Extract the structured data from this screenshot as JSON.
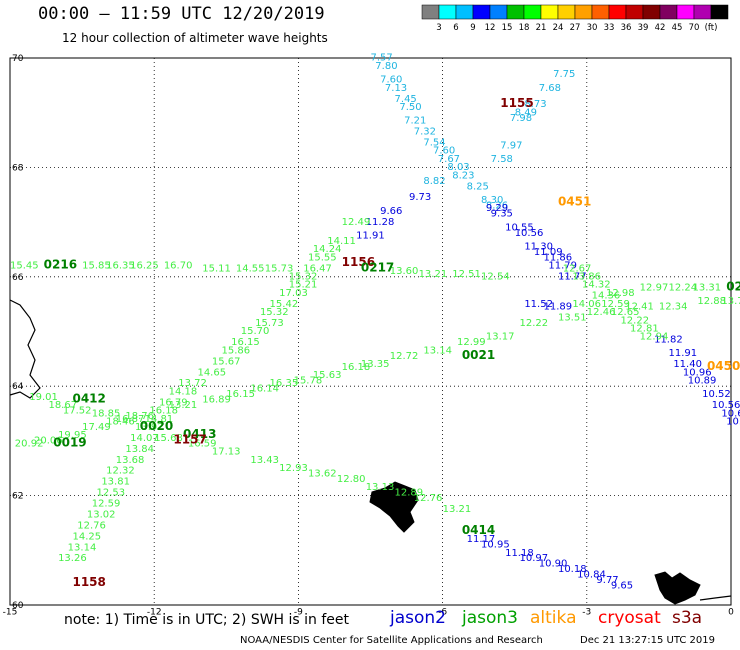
{
  "header": {
    "title": "00:00 — 11:59 UTC 12/20/2019",
    "subtitle": "12 hour collection of altimeter wave heights"
  },
  "colorbar": {
    "colors": [
      "#808080",
      "#00ffff",
      "#00bfff",
      "#0000ff",
      "#0080ff",
      "#00c000",
      "#00ff00",
      "#ffff00",
      "#ffd000",
      "#ffa000",
      "#ff6000",
      "#ff0000",
      "#c00000",
      "#800000",
      "#800060",
      "#ff00ff",
      "#b000b0",
      "#000000"
    ],
    "labels": [
      "3",
      "6",
      "9",
      "12",
      "15",
      "18",
      "21",
      "24",
      "27",
      "30",
      "33",
      "36",
      "39",
      "42",
      "45",
      "70",
      "(ft)"
    ]
  },
  "footer": {
    "note": "note: 1) Time is in UTC; 2) SWH is in feet",
    "credit": "NOAA/NESDIS Center for Satellite Applications and Research",
    "timestamp": "Dec 21 13:27:15 UTC 2019"
  },
  "legend": {
    "jason2": {
      "label": "jason2",
      "color": "#0000cc"
    },
    "jason3": {
      "label": "jason3",
      "color": "#00a000"
    },
    "altika": {
      "label": "altika",
      "color": "#ff9900"
    },
    "cryosat": {
      "label": "cryosat",
      "color": "#ff0000"
    },
    "s3a": {
      "label": "s3a",
      "color": "#800000"
    }
  },
  "chart_data": {
    "type": "scatter",
    "xlim": [
      -15,
      0
    ],
    "ylim": [
      60,
      70
    ],
    "x_ticks": [
      "-15",
      "-12",
      "-9",
      "-6",
      "-3",
      "0"
    ],
    "y_ticks": [
      "60",
      "62",
      "64",
      "66",
      "68",
      "70"
    ],
    "grid": true,
    "tracks": [
      {
        "time": "1155",
        "color": "#800000",
        "x": -4.8,
        "y": 69.1
      },
      {
        "time": "1156",
        "color": "#800000",
        "x": -8.1,
        "y": 66.2
      },
      {
        "time": "0217",
        "color": "#008000",
        "x": -7.7,
        "y": 66.1
      },
      {
        "time": "0216",
        "color": "#008000",
        "x": -14.3,
        "y": 66.15
      },
      {
        "time": "0451",
        "color": "#ff9900",
        "x": -3.6,
        "y": 67.3
      },
      {
        "time": "0021",
        "color": "#008000",
        "x": -5.6,
        "y": 64.5
      },
      {
        "time": "0450",
        "color": "#ff9900",
        "x": -0.5,
        "y": 64.3
      },
      {
        "time": "0412",
        "color": "#008000",
        "x": -13.7,
        "y": 63.7
      },
      {
        "time": "0020",
        "color": "#008000",
        "x": -12.3,
        "y": 63.2
      },
      {
        "time": "0413",
        "color": "#008000",
        "x": -11.4,
        "y": 63.05
      },
      {
        "time": "1157",
        "color": "#800000",
        "x": -11.6,
        "y": 62.95
      },
      {
        "time": "0019",
        "color": "#008000",
        "x": -14.1,
        "y": 62.9
      },
      {
        "time": "0414",
        "color": "#008000",
        "x": -5.6,
        "y": 61.3
      },
      {
        "time": "1158",
        "color": "#800000",
        "x": -13.7,
        "y": 60.35
      },
      {
        "time": "02",
        "color": "#008000",
        "x": -0.1,
        "y": 65.75
      }
    ],
    "points": [
      {
        "x": -7.5,
        "y": 69.95,
        "v": "7.57",
        "c": "#1fb4e0"
      },
      {
        "x": -7.4,
        "y": 69.8,
        "v": "7.80",
        "c": "#1fb4e0"
      },
      {
        "x": -7.3,
        "y": 69.55,
        "v": "7.60",
        "c": "#1fb4e0"
      },
      {
        "x": -7.2,
        "y": 69.4,
        "v": "7.13",
        "c": "#1fb4e0"
      },
      {
        "x": -7.0,
        "y": 69.2,
        "v": "7.45",
        "c": "#1fb4e0"
      },
      {
        "x": -6.9,
        "y": 69.05,
        "v": "7.50",
        "c": "#1fb4e0"
      },
      {
        "x": -6.8,
        "y": 68.8,
        "v": "7.21",
        "c": "#1fb4e0"
      },
      {
        "x": -6.6,
        "y": 68.6,
        "v": "7.32",
        "c": "#1fb4e0"
      },
      {
        "x": -6.4,
        "y": 68.4,
        "v": "7.54",
        "c": "#1fb4e0"
      },
      {
        "x": -6.2,
        "y": 68.25,
        "v": "7.60",
        "c": "#1fb4e0"
      },
      {
        "x": -6.1,
        "y": 68.1,
        "v": "7.67",
        "c": "#1fb4e0"
      },
      {
        "x": -5.9,
        "y": 67.95,
        "v": "8.03",
        "c": "#1fb4e0"
      },
      {
        "x": -5.8,
        "y": 67.8,
        "v": "8.23",
        "c": "#1fb4e0"
      },
      {
        "x": -6.4,
        "y": 67.7,
        "v": "8.82",
        "c": "#1fb4e0"
      },
      {
        "x": -5.5,
        "y": 67.6,
        "v": "8.25",
        "c": "#1fb4e0"
      },
      {
        "x": -5.2,
        "y": 67.35,
        "v": "8.30",
        "c": "#1fb4e0"
      },
      {
        "x": -5.1,
        "y": 67.25,
        "v": "8.26",
        "c": "#1fb4e0"
      },
      {
        "x": -5.0,
        "y": 68.1,
        "v": "7.58",
        "c": "#1fb4e0"
      },
      {
        "x": -4.8,
        "y": 68.35,
        "v": "7.97",
        "c": "#1fb4e0"
      },
      {
        "x": -4.6,
        "y": 68.85,
        "v": "7.98",
        "c": "#1fb4e0"
      },
      {
        "x": -4.5,
        "y": 68.95,
        "v": "8.49",
        "c": "#1fb4e0"
      },
      {
        "x": -4.3,
        "y": 69.1,
        "v": "8.73",
        "c": "#1fb4e0"
      },
      {
        "x": -4.0,
        "y": 69.4,
        "v": "7.68",
        "c": "#1fb4e0"
      },
      {
        "x": -3.7,
        "y": 69.65,
        "v": "7.75",
        "c": "#1fb4e0"
      },
      {
        "x": -6.7,
        "y": 67.4,
        "v": "9.73",
        "c": "#0000dd"
      },
      {
        "x": -7.3,
        "y": 67.15,
        "v": "9.66",
        "c": "#0000dd"
      },
      {
        "x": -7.6,
        "y": 66.95,
        "v": "11.28",
        "c": "#0000dd"
      },
      {
        "x": -7.8,
        "y": 66.7,
        "v": "11.91",
        "c": "#0000dd"
      },
      {
        "x": -5.1,
        "y": 67.2,
        "v": "9.29",
        "c": "#0000dd"
      },
      {
        "x": -5.0,
        "y": 67.1,
        "v": "9.35",
        "c": "#0000dd"
      },
      {
        "x": -4.7,
        "y": 66.85,
        "v": "10.55",
        "c": "#0000dd"
      },
      {
        "x": -4.5,
        "y": 66.75,
        "v": "10.56",
        "c": "#0000dd"
      },
      {
        "x": -4.3,
        "y": 66.5,
        "v": "11.30",
        "c": "#0000dd"
      },
      {
        "x": -4.1,
        "y": 66.4,
        "v": "11.09",
        "c": "#0000dd"
      },
      {
        "x": -3.9,
        "y": 66.3,
        "v": "11.86",
        "c": "#0000dd"
      },
      {
        "x": -3.8,
        "y": 66.15,
        "v": "11.79",
        "c": "#0000dd"
      },
      {
        "x": -3.6,
        "y": 65.95,
        "v": "11.77",
        "c": "#0000dd"
      },
      {
        "x": -4.3,
        "y": 65.45,
        "v": "11.52",
        "c": "#0000dd"
      },
      {
        "x": -3.9,
        "y": 65.4,
        "v": "11.89",
        "c": "#0000dd"
      },
      {
        "x": -1.6,
        "y": 64.8,
        "v": "11.82",
        "c": "#0000dd"
      },
      {
        "x": -1.3,
        "y": 64.55,
        "v": "11.91",
        "c": "#0000dd"
      },
      {
        "x": -1.2,
        "y": 64.35,
        "v": "11.40",
        "c": "#0000dd"
      },
      {
        "x": -1.0,
        "y": 64.2,
        "v": "10.96",
        "c": "#0000dd"
      },
      {
        "x": -0.9,
        "y": 64.05,
        "v": "10.89",
        "c": "#0000dd"
      },
      {
        "x": -0.6,
        "y": 63.8,
        "v": "10.52",
        "c": "#0000dd"
      },
      {
        "x": -0.4,
        "y": 63.6,
        "v": "10.56",
        "c": "#0000dd"
      },
      {
        "x": -0.2,
        "y": 63.45,
        "v": "10.6",
        "c": "#0000dd"
      },
      {
        "x": -0.1,
        "y": 63.3,
        "v": "10.",
        "c": "#0000dd"
      },
      {
        "x": -5.5,
        "y": 61.15,
        "v": "11.17",
        "c": "#0000dd"
      },
      {
        "x": -5.2,
        "y": 61.05,
        "v": "10.95",
        "c": "#0000dd"
      },
      {
        "x": -4.7,
        "y": 60.9,
        "v": "11.18",
        "c": "#0000dd"
      },
      {
        "x": -4.4,
        "y": 60.8,
        "v": "10.97",
        "c": "#0000dd"
      },
      {
        "x": -4.0,
        "y": 60.7,
        "v": "10.90",
        "c": "#0000dd"
      },
      {
        "x": -3.6,
        "y": 60.6,
        "v": "10.18",
        "c": "#0000dd"
      },
      {
        "x": -3.2,
        "y": 60.5,
        "v": "10.84",
        "c": "#0000dd"
      },
      {
        "x": -2.8,
        "y": 60.4,
        "v": "9.77",
        "c": "#0000dd"
      },
      {
        "x": -2.5,
        "y": 60.3,
        "v": "9.65",
        "c": "#0000dd"
      },
      {
        "x": -8.1,
        "y": 66.95,
        "v": "12.49",
        "c": "#44ee44"
      },
      {
        "x": -8.4,
        "y": 66.6,
        "v": "14.11",
        "c": "#44ee44"
      },
      {
        "x": -8.7,
        "y": 66.45,
        "v": "14.24",
        "c": "#44ee44"
      },
      {
        "x": -8.8,
        "y": 66.3,
        "v": "15.55",
        "c": "#44ee44"
      },
      {
        "x": -8.9,
        "y": 66.1,
        "v": "16.47",
        "c": "#44ee44"
      },
      {
        "x": -9.2,
        "y": 65.95,
        "v": "15.32",
        "c": "#44ee44"
      },
      {
        "x": -9.2,
        "y": 65.8,
        "v": "15.21",
        "c": "#44ee44"
      },
      {
        "x": -9.4,
        "y": 65.65,
        "v": "17.03",
        "c": "#44ee44"
      },
      {
        "x": -9.6,
        "y": 65.45,
        "v": "15.42",
        "c": "#44ee44"
      },
      {
        "x": -9.8,
        "y": 65.3,
        "v": "15.32",
        "c": "#44ee44"
      },
      {
        "x": -9.9,
        "y": 65.1,
        "v": "15.73",
        "c": "#44ee44"
      },
      {
        "x": -10.2,
        "y": 64.95,
        "v": "15.70",
        "c": "#44ee44"
      },
      {
        "x": -10.4,
        "y": 64.75,
        "v": "16.15",
        "c": "#44ee44"
      },
      {
        "x": -10.6,
        "y": 64.6,
        "v": "15.86",
        "c": "#44ee44"
      },
      {
        "x": -10.8,
        "y": 64.4,
        "v": "15.67",
        "c": "#44ee44"
      },
      {
        "x": -11.1,
        "y": 64.2,
        "v": "14.65",
        "c": "#44ee44"
      },
      {
        "x": -11.5,
        "y": 64.0,
        "v": "13.72",
        "c": "#44ee44"
      },
      {
        "x": -11.7,
        "y": 63.85,
        "v": "14.18",
        "c": "#44ee44"
      },
      {
        "x": -11.9,
        "y": 63.65,
        "v": "16.79",
        "c": "#44ee44"
      },
      {
        "x": -12.1,
        "y": 63.5,
        "v": "16.18",
        "c": "#44ee44"
      },
      {
        "x": -12.2,
        "y": 63.35,
        "v": "14.81",
        "c": "#44ee44"
      },
      {
        "x": -12.4,
        "y": 63.2,
        "v": "13.92",
        "c": "#44ee44"
      },
      {
        "x": -12.5,
        "y": 63.0,
        "v": "14.07",
        "c": "#44ee44"
      },
      {
        "x": -12.6,
        "y": 62.8,
        "v": "13.84",
        "c": "#44ee44"
      },
      {
        "x": -12.8,
        "y": 62.6,
        "v": "13.68",
        "c": "#44ee44"
      },
      {
        "x": -13.0,
        "y": 62.4,
        "v": "12.32",
        "c": "#44ee44"
      },
      {
        "x": -13.1,
        "y": 62.2,
        "v": "13.81",
        "c": "#44ee44"
      },
      {
        "x": -13.2,
        "y": 62.0,
        "v": "12.53",
        "c": "#44ee44"
      },
      {
        "x": -13.3,
        "y": 61.8,
        "v": "12.59",
        "c": "#44ee44"
      },
      {
        "x": -13.4,
        "y": 61.6,
        "v": "13.02",
        "c": "#44ee44"
      },
      {
        "x": -13.6,
        "y": 61.4,
        "v": "12.76",
        "c": "#44ee44"
      },
      {
        "x": -13.7,
        "y": 61.2,
        "v": "14.25",
        "c": "#44ee44"
      },
      {
        "x": -13.8,
        "y": 61.0,
        "v": "13.14",
        "c": "#44ee44"
      },
      {
        "x": -14.0,
        "y": 60.8,
        "v": "13.26",
        "c": "#44ee44"
      },
      {
        "x": -15.0,
        "y": 66.15,
        "v": "15.45",
        "c": "#44ee44"
      },
      {
        "x": -13.5,
        "y": 66.15,
        "v": "15.85",
        "c": "#44ee44"
      },
      {
        "x": -13.0,
        "y": 66.15,
        "v": "16.35",
        "c": "#44ee44"
      },
      {
        "x": -12.5,
        "y": 66.15,
        "v": "16.25",
        "c": "#44ee44"
      },
      {
        "x": -11.8,
        "y": 66.15,
        "v": "16.70",
        "c": "#44ee44"
      },
      {
        "x": -11.0,
        "y": 66.1,
        "v": "15.11",
        "c": "#44ee44"
      },
      {
        "x": -10.3,
        "y": 66.1,
        "v": "14.55",
        "c": "#44ee44"
      },
      {
        "x": -9.7,
        "y": 66.1,
        "v": "15.73",
        "c": "#44ee44"
      },
      {
        "x": -7.1,
        "y": 66.05,
        "v": "13.60",
        "c": "#44ee44"
      },
      {
        "x": -6.5,
        "y": 66.0,
        "v": "13.21",
        "c": "#44ee44"
      },
      {
        "x": -5.8,
        "y": 66.0,
        "v": "12.51",
        "c": "#44ee44"
      },
      {
        "x": -5.2,
        "y": 65.95,
        "v": "12.54",
        "c": "#44ee44"
      },
      {
        "x": -3.3,
        "y": 65.45,
        "v": "14.06",
        "c": "#44ee44"
      },
      {
        "x": -2.6,
        "y": 65.65,
        "v": "12.98",
        "c": "#44ee44"
      },
      {
        "x": -1.9,
        "y": 65.75,
        "v": "12.97",
        "c": "#44ee44"
      },
      {
        "x": -1.3,
        "y": 65.75,
        "v": "12.24",
        "c": "#44ee44"
      },
      {
        "x": -0.8,
        "y": 65.75,
        "v": "13.31",
        "c": "#44ee44"
      },
      {
        "x": -3.5,
        "y": 66.1,
        "v": "12.67",
        "c": "#44ee44"
      },
      {
        "x": -3.3,
        "y": 65.95,
        "v": "13.86",
        "c": "#44ee44"
      },
      {
        "x": -3.1,
        "y": 65.8,
        "v": "14.32",
        "c": "#44ee44"
      },
      {
        "x": -2.9,
        "y": 65.6,
        "v": "14.36",
        "c": "#44ee44"
      },
      {
        "x": -2.7,
        "y": 65.45,
        "v": "12.59",
        "c": "#44ee44"
      },
      {
        "x": -2.5,
        "y": 65.3,
        "v": "12.65",
        "c": "#44ee44"
      },
      {
        "x": -2.3,
        "y": 65.15,
        "v": "12.22",
        "c": "#44ee44"
      },
      {
        "x": -2.1,
        "y": 65.0,
        "v": "12.81",
        "c": "#44ee44"
      },
      {
        "x": -1.9,
        "y": 64.85,
        "v": "12.94",
        "c": "#44ee44"
      },
      {
        "x": -3.6,
        "y": 65.2,
        "v": "13.51",
        "c": "#44ee44"
      },
      {
        "x": -3.0,
        "y": 65.3,
        "v": "12.46",
        "c": "#44ee44"
      },
      {
        "x": -2.2,
        "y": 65.4,
        "v": "12.41",
        "c": "#44ee44"
      },
      {
        "x": -1.5,
        "y": 65.4,
        "v": "12.34",
        "c": "#44ee44"
      },
      {
        "x": -0.7,
        "y": 65.5,
        "v": "12.88",
        "c": "#44ee44"
      },
      {
        "x": -0.2,
        "y": 65.5,
        "v": "13.72",
        "c": "#44ee44"
      },
      {
        "x": -4.4,
        "y": 65.1,
        "v": "12.22",
        "c": "#44ee44"
      },
      {
        "x": -5.1,
        "y": 64.85,
        "v": "13.17",
        "c": "#44ee44"
      },
      {
        "x": -5.7,
        "y": 64.75,
        "v": "12.99",
        "c": "#44ee44"
      },
      {
        "x": -6.4,
        "y": 64.6,
        "v": "13.14",
        "c": "#44ee44"
      },
      {
        "x": -7.1,
        "y": 64.5,
        "v": "12.72",
        "c": "#44ee44"
      },
      {
        "x": -7.7,
        "y": 64.35,
        "v": "13.35",
        "c": "#44ee44"
      },
      {
        "x": -8.1,
        "y": 64.3,
        "v": "16.18",
        "c": "#44ee44"
      },
      {
        "x": -8.7,
        "y": 64.15,
        "v": "15.63",
        "c": "#44ee44"
      },
      {
        "x": -9.1,
        "y": 64.05,
        "v": "15.78",
        "c": "#44ee44"
      },
      {
        "x": -9.6,
        "y": 64.0,
        "v": "16.35",
        "c": "#44ee44"
      },
      {
        "x": -10.0,
        "y": 63.9,
        "v": "16.14",
        "c": "#44ee44"
      },
      {
        "x": -10.5,
        "y": 63.8,
        "v": "16.15",
        "c": "#44ee44"
      },
      {
        "x": -11.0,
        "y": 63.7,
        "v": "16.89",
        "c": "#44ee44"
      },
      {
        "x": -11.7,
        "y": 63.6,
        "v": "13.21",
        "c": "#44ee44"
      },
      {
        "x": -12.6,
        "y": 63.4,
        "v": "18.76",
        "c": "#44ee44"
      },
      {
        "x": -13.0,
        "y": 63.3,
        "v": "18.46",
        "c": "#44ee44"
      },
      {
        "x": -13.5,
        "y": 63.2,
        "v": "17.49",
        "c": "#44ee44"
      },
      {
        "x": -14.0,
        "y": 63.05,
        "v": "19.95",
        "c": "#44ee44"
      },
      {
        "x": -14.5,
        "y": 62.95,
        "v": "20.06",
        "c": "#44ee44"
      },
      {
        "x": -14.9,
        "y": 62.9,
        "v": "20.92",
        "c": "#44ee44"
      },
      {
        "x": -14.6,
        "y": 63.75,
        "v": "19.01",
        "c": "#44ee44"
      },
      {
        "x": -14.2,
        "y": 63.6,
        "v": "18.67",
        "c": "#44ee44"
      },
      {
        "x": -13.9,
        "y": 63.5,
        "v": "17.52",
        "c": "#44ee44"
      },
      {
        "x": -13.3,
        "y": 63.45,
        "v": "18.85",
        "c": "#44ee44"
      },
      {
        "x": -12.8,
        "y": 63.35,
        "v": "16.87",
        "c": "#44ee44"
      },
      {
        "x": -12.0,
        "y": 63.0,
        "v": "15.68",
        "c": "#44ee44"
      },
      {
        "x": -11.3,
        "y": 62.9,
        "v": "16.59",
        "c": "#44ee44"
      },
      {
        "x": -10.8,
        "y": 62.75,
        "v": "17.13",
        "c": "#44ee44"
      },
      {
        "x": -10.0,
        "y": 62.6,
        "v": "13.43",
        "c": "#44ee44"
      },
      {
        "x": -9.4,
        "y": 62.45,
        "v": "12.93",
        "c": "#44ee44"
      },
      {
        "x": -8.8,
        "y": 62.35,
        "v": "13.62",
        "c": "#44ee44"
      },
      {
        "x": -8.2,
        "y": 62.25,
        "v": "12.80",
        "c": "#44ee44"
      },
      {
        "x": -7.6,
        "y": 62.1,
        "v": "13.13",
        "c": "#44ee44"
      },
      {
        "x": -7.0,
        "y": 62.0,
        "v": "12.89",
        "c": "#44ee44"
      },
      {
        "x": -6.6,
        "y": 61.9,
        "v": "12.76",
        "c": "#44ee44"
      },
      {
        "x": -6.0,
        "y": 61.7,
        "v": "13.21",
        "c": "#44ee44"
      }
    ]
  }
}
